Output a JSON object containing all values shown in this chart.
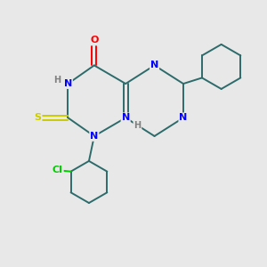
{
  "background_color": "#e8e8e8",
  "bond_color": "#2d6b6b",
  "atom_colors": {
    "N": "#0000ff",
    "O": "#ff0000",
    "S": "#cccc00",
    "Cl": "#00cc00",
    "H": "#808080",
    "C": "#2d6b6b"
  },
  "figsize": [
    3.0,
    3.0
  ],
  "dpi": 100
}
